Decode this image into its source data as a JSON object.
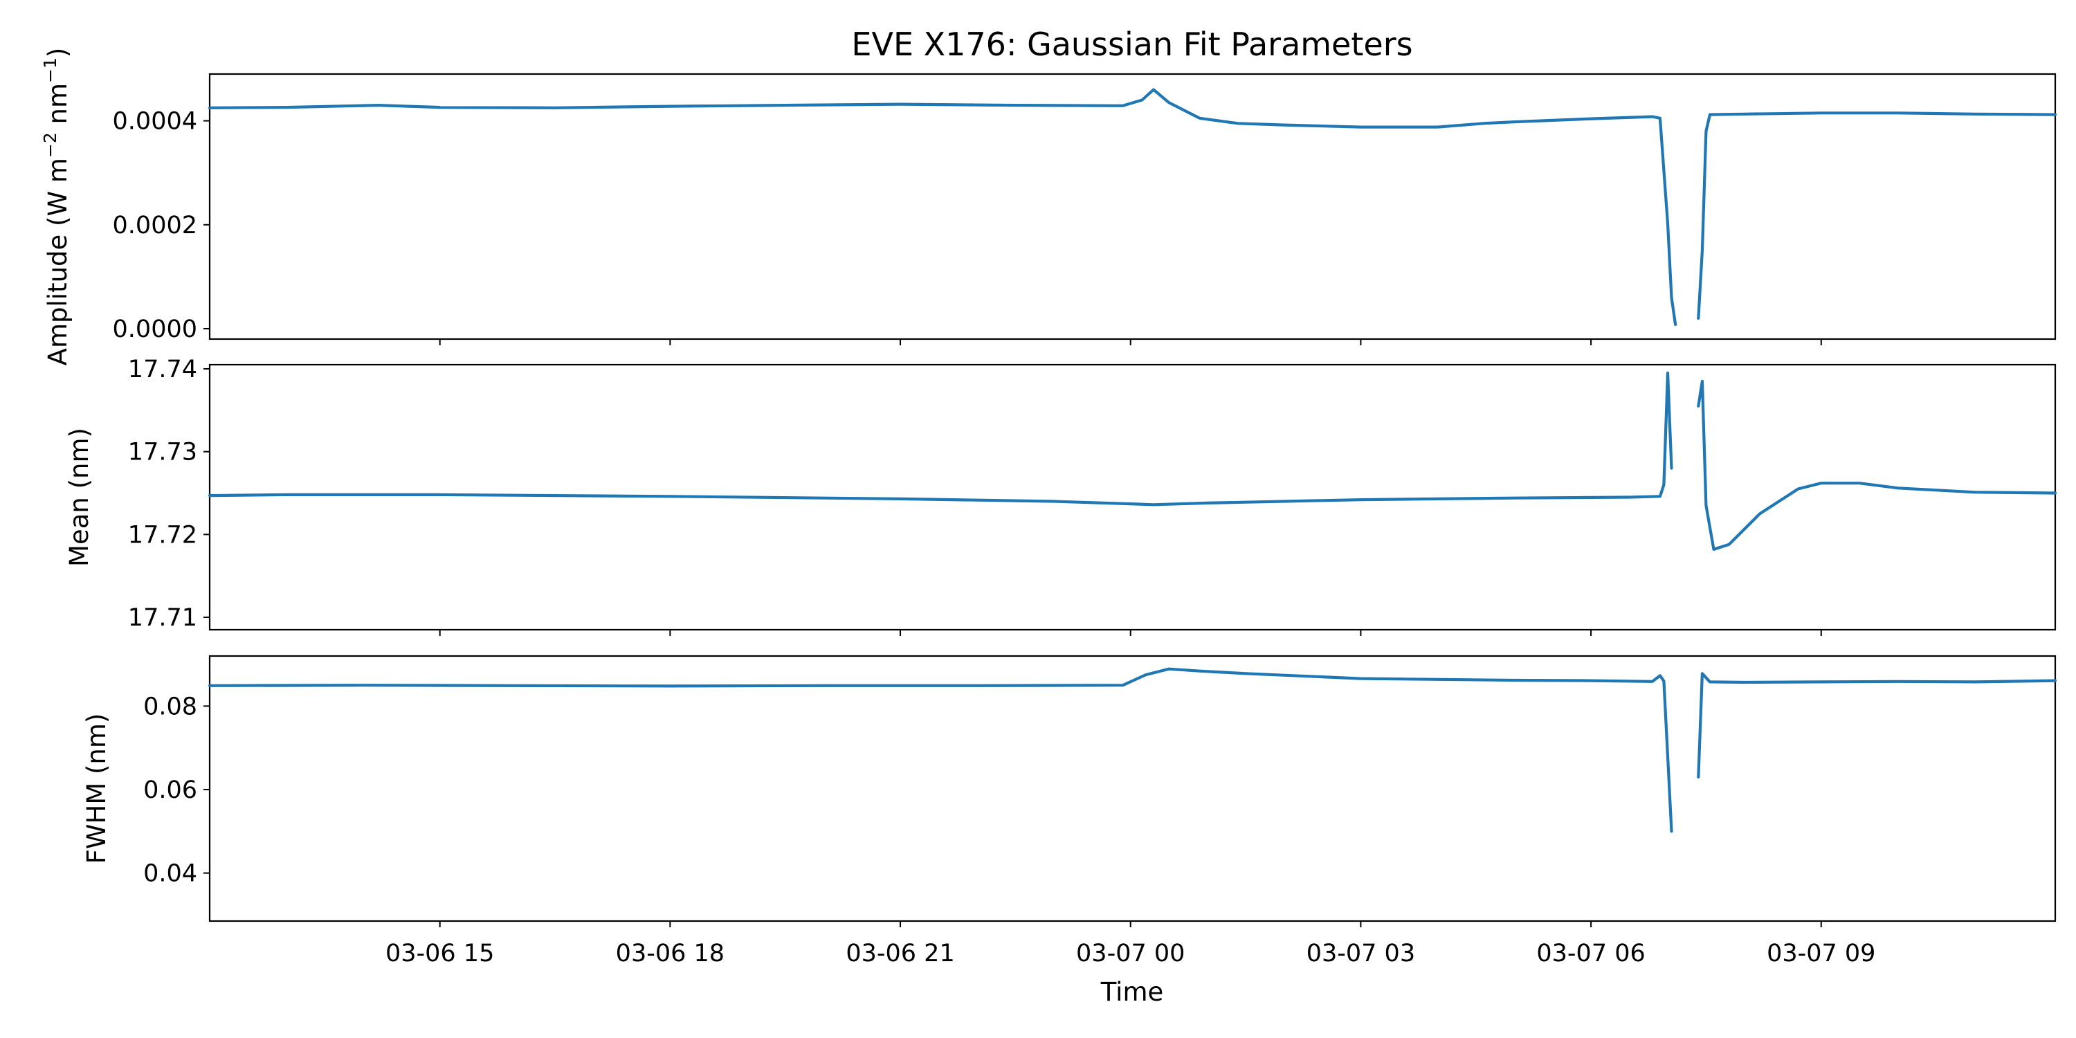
{
  "title": "EVE X176: Gaussian Fit Parameters",
  "chart_data": {
    "type": "line",
    "title": "EVE X176: Gaussian Fit Parameters",
    "xlabel": "Time",
    "series_color": "#1f77b4",
    "x_ticks": [
      "03-06 15",
      "03-06 18",
      "03-06 21",
      "03-07 00",
      "03-07 03",
      "03-07 06",
      "03-07 09"
    ],
    "x_tick_hours": [
      15,
      18,
      21,
      24,
      27,
      30,
      33
    ],
    "xlim_hours": [
      12.0,
      36.05
    ],
    "panels": [
      {
        "ylabel_main": "Amplitude (W m",
        "ylabel_sup1": "−2",
        "ylabel_mid": " nm",
        "ylabel_sup2": "−1",
        "ylabel_end": ")",
        "ylim": [
          -2e-05,
          0.00049
        ],
        "yticks": [
          0.0,
          0.0002,
          0.0004
        ],
        "ytick_labels": [
          "0.0000",
          "0.0002",
          "0.0004"
        ],
        "series": [
          {
            "points": [
              [
                12.0,
                0.000425
              ],
              [
                13.0,
                0.000426
              ],
              [
                14.2,
                0.00043
              ],
              [
                15.0,
                0.000426
              ],
              [
                16.5,
                0.000425
              ],
              [
                18.0,
                0.000428
              ],
              [
                19.5,
                0.00043
              ],
              [
                21.0,
                0.000432
              ],
              [
                22.5,
                0.00043
              ],
              [
                23.9,
                0.000429
              ],
              [
                24.15,
                0.00044
              ],
              [
                24.3,
                0.00046
              ],
              [
                24.5,
                0.000435
              ],
              [
                24.9,
                0.000405
              ],
              [
                25.4,
                0.000395
              ],
              [
                26.0,
                0.000392
              ],
              [
                27.0,
                0.000388
              ],
              [
                28.0,
                0.000388
              ],
              [
                28.6,
                0.000395
              ],
              [
                29.0,
                0.000398
              ],
              [
                30.0,
                0.000404
              ],
              [
                30.8,
                0.000408
              ],
              [
                30.9,
                0.000405
              ],
              [
                31.0,
                0.000202
              ],
              [
                31.05,
                6e-05
              ],
              [
                31.1,
                8e-06
              ]
            ]
          },
          {
            "points": [
              [
                31.4,
                2e-05
              ],
              [
                31.45,
                0.00015
              ],
              [
                31.5,
                0.00038
              ],
              [
                31.55,
                0.000412
              ],
              [
                32.0,
                0.000413
              ],
              [
                33.0,
                0.000415
              ],
              [
                34.0,
                0.000415
              ],
              [
                35.0,
                0.000413
              ],
              [
                36.05,
                0.000412
              ]
            ]
          }
        ]
      },
      {
        "ylabel": "Mean (nm)",
        "ylim": [
          17.7085,
          17.7405
        ],
        "yticks": [
          17.71,
          17.72,
          17.73,
          17.74
        ],
        "ytick_labels": [
          "17.71",
          "17.72",
          "17.73",
          "17.74"
        ],
        "series": [
          {
            "points": [
              [
                12.0,
                17.7247
              ],
              [
                13.0,
                17.7248
              ],
              [
                15.0,
                17.7248
              ],
              [
                18.0,
                17.7246
              ],
              [
                21.0,
                17.7243
              ],
              [
                23.0,
                17.724
              ],
              [
                24.0,
                17.7237
              ],
              [
                24.3,
                17.7236
              ],
              [
                25.0,
                17.7238
              ],
              [
                27.0,
                17.7242
              ],
              [
                29.0,
                17.7244
              ],
              [
                30.5,
                17.7245
              ],
              [
                30.9,
                17.7246
              ],
              [
                30.95,
                17.726
              ],
              [
                31.0,
                17.7395
              ],
              [
                31.05,
                17.728
              ]
            ]
          },
          {
            "points": [
              [
                31.4,
                17.7355
              ],
              [
                31.45,
                17.7385
              ],
              [
                31.5,
                17.7235
              ],
              [
                31.6,
                17.7182
              ],
              [
                31.8,
                17.7188
              ],
              [
                32.2,
                17.7225
              ],
              [
                32.7,
                17.7255
              ],
              [
                33.0,
                17.7262
              ],
              [
                33.5,
                17.7262
              ],
              [
                34.0,
                17.7256
              ],
              [
                35.0,
                17.7251
              ],
              [
                36.05,
                17.725
              ]
            ]
          }
        ]
      },
      {
        "ylabel": "FWHM (nm)",
        "ylim": [
          0.0285,
          0.092
        ],
        "yticks": [
          0.04,
          0.06,
          0.08
        ],
        "ytick_labels": [
          "0.04",
          "0.06",
          "0.08"
        ],
        "series": [
          {
            "points": [
              [
                12.0,
                0.0849
              ],
              [
                14.0,
                0.085
              ],
              [
                16.0,
                0.0849
              ],
              [
                18.0,
                0.0848
              ],
              [
                20.0,
                0.0849
              ],
              [
                22.0,
                0.0849
              ],
              [
                23.9,
                0.085
              ],
              [
                24.2,
                0.0875
              ],
              [
                24.5,
                0.0889
              ],
              [
                24.9,
                0.0884
              ],
              [
                25.5,
                0.0878
              ],
              [
                27.0,
                0.0866
              ],
              [
                28.0,
                0.0864
              ],
              [
                29.0,
                0.0862
              ],
              [
                30.0,
                0.0861
              ],
              [
                30.8,
                0.0859
              ],
              [
                30.9,
                0.0873
              ],
              [
                30.95,
                0.086
              ],
              [
                31.0,
                0.068
              ],
              [
                31.05,
                0.05
              ]
            ]
          },
          {
            "points": [
              [
                31.4,
                0.063
              ],
              [
                31.45,
                0.0878
              ],
              [
                31.55,
                0.0858
              ],
              [
                32.0,
                0.0857
              ],
              [
                33.0,
                0.0858
              ],
              [
                34.0,
                0.0859
              ],
              [
                35.0,
                0.0858
              ],
              [
                36.05,
                0.0861
              ]
            ]
          }
        ]
      }
    ]
  }
}
